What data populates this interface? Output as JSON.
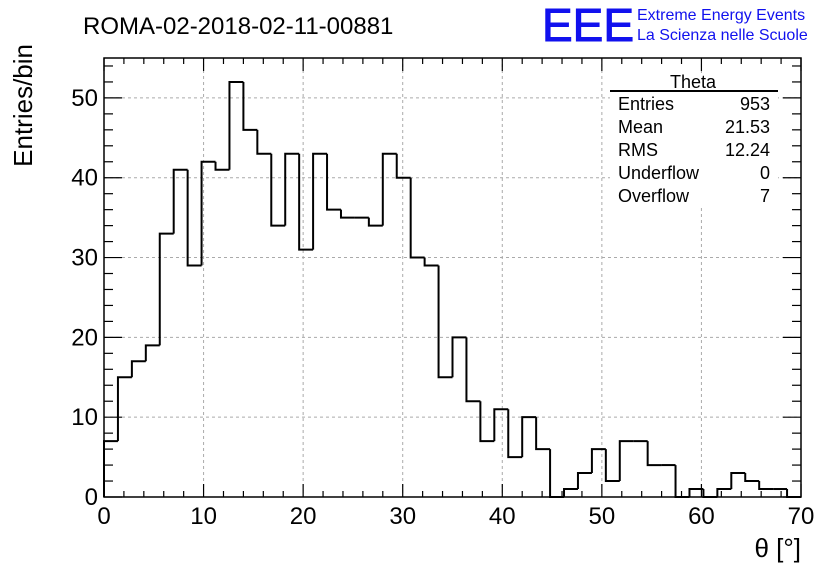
{
  "chart_data": {
    "type": "bar",
    "title": "ROMA-02-2018-02-11-00881",
    "xlabel": "θ [°]",
    "ylabel": "Entries/bin",
    "xlim": [
      0,
      70
    ],
    "ylim": [
      0,
      55
    ],
    "bin_width": 1.4,
    "grid": true,
    "x_ticks": [
      0,
      10,
      20,
      30,
      40,
      50,
      60,
      70
    ],
    "y_ticks": [
      0,
      10,
      20,
      30,
      40,
      50
    ],
    "values": [
      7,
      15,
      17,
      19,
      33,
      41,
      29,
      42,
      41,
      52,
      46,
      43,
      34,
      43,
      31,
      43,
      36,
      35,
      35,
      34,
      43,
      40,
      30,
      29,
      15,
      20,
      12,
      7,
      11,
      5,
      10,
      6,
      0,
      1,
      3,
      6,
      2,
      7,
      7,
      4,
      4,
      0,
      1,
      0,
      1,
      3,
      2,
      1,
      1,
      0
    ],
    "stats_box": {
      "title": "Theta",
      "rows": [
        {
          "label": "Entries",
          "value": "953"
        },
        {
          "label": "Mean",
          "value": "21.53"
        },
        {
          "label": "RMS",
          "value": "12.24"
        },
        {
          "label": "Underflow",
          "value": "0"
        },
        {
          "label": "Overflow",
          "value": "7"
        }
      ]
    }
  },
  "logo": {
    "text": "EEE",
    "line1": "Extreme Energy Events",
    "line2": "La Scienza nelle Scuole",
    "color": "#1111ee"
  },
  "colors": {
    "line": "#000000",
    "grid": "#aaaaaa"
  }
}
